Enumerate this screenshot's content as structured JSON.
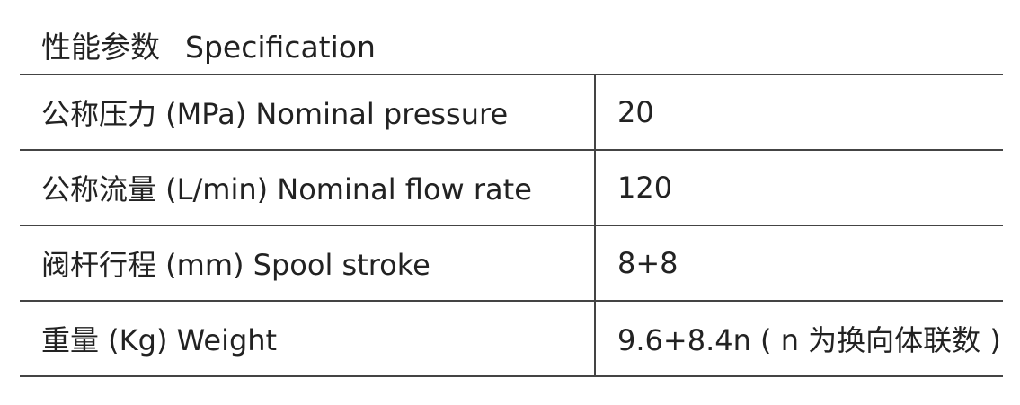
{
  "header": {
    "title_cn": "性能参数",
    "title_en": "Specification"
  },
  "table": {
    "rows": [
      [
        "公称压力 (MPa) Nominal pressure",
        "20"
      ],
      [
        "公称流量 (L/min) Nominal flow rate",
        "120"
      ],
      [
        "阀杆行程 (mm) Spool stroke",
        "8+8"
      ],
      [
        "重量 (Kg) Weight",
        "9.6+8.4n ( n 为换向体联数 )"
      ]
    ]
  }
}
